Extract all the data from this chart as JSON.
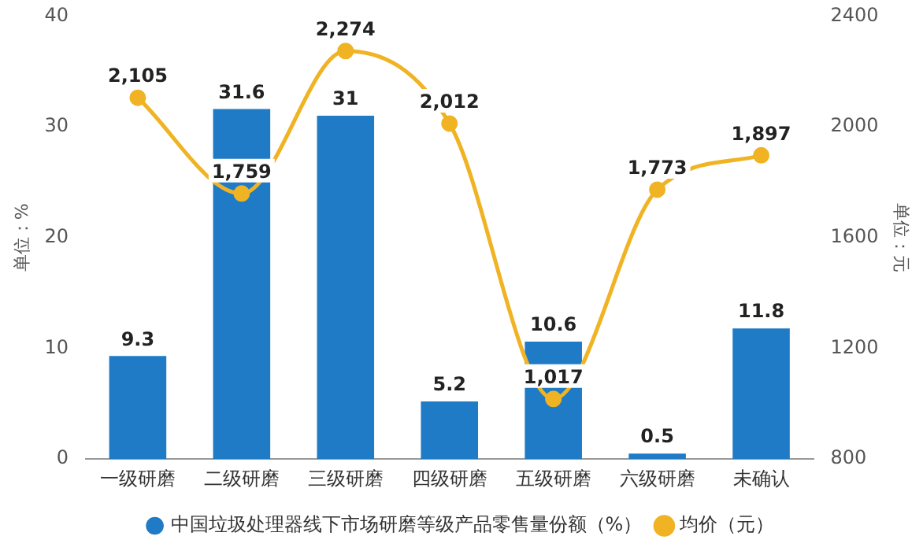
{
  "chart_data": {
    "type": "bar",
    "categories": [
      "一级研磨",
      "二级研磨",
      "三级研磨",
      "四级研磨",
      "五级研磨",
      "六级研磨",
      "未确认"
    ],
    "series": [
      {
        "name": "中国垃圾处理器线下市场研磨等级产品零售量份额（%）",
        "color": "#1f7bc6",
        "values": [
          9.3,
          31.6,
          31,
          5.2,
          10.6,
          0.5,
          11.8
        ]
      },
      {
        "name": "均价（元）",
        "type": "line",
        "axis": "y2",
        "color": "#f0b323",
        "values": [
          2105,
          1759,
          2274,
          2012,
          1017,
          1773,
          1897
        ],
        "value_labels": [
          "2,105",
          "1,759",
          "2,274",
          "2,012",
          "1,017",
          "1,773",
          "1,897"
        ]
      }
    ],
    "ylabel": "单位：%",
    "y2label": "单位：元",
    "ylim": [
      0,
      40
    ],
    "yticks": [
      0,
      10,
      20,
      30,
      40
    ],
    "y2lim": [
      800,
      2400
    ],
    "y2ticks": [
      800,
      1200,
      1600,
      2000,
      2400
    ],
    "grid": false,
    "legend": "bottom",
    "marker": "circle",
    "data_labels": true
  }
}
